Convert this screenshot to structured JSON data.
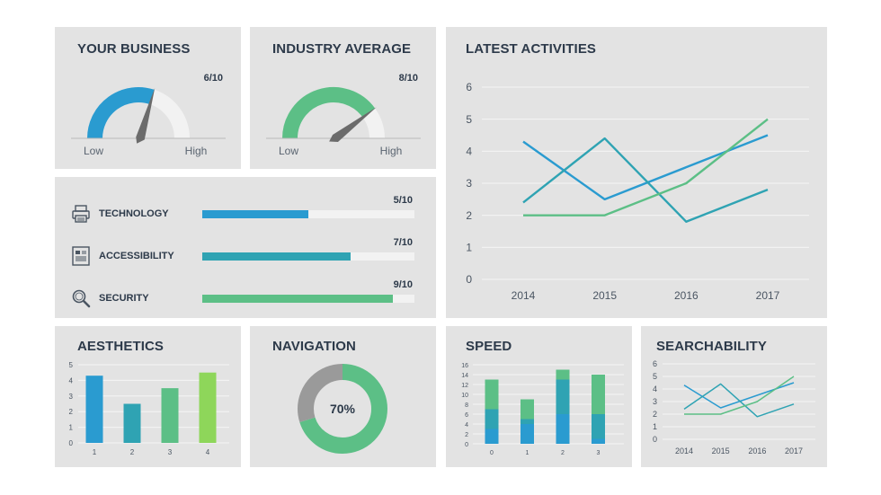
{
  "colors": {
    "panel": "#e3e3e3",
    "blue": "#2a9bd0",
    "teal": "#2fa3b3",
    "green": "#5cbf86",
    "lime": "#8ed65a",
    "gauge_track": "#f2f2f2",
    "needle": "#6b6b6b",
    "donut_grey": "#9a9a9a"
  },
  "business": {
    "title": "YOUR BUSINESS",
    "score": "6/10",
    "value": 6,
    "max": 10,
    "low_label": "Low",
    "high_label": "High",
    "accent": "#2a9bd0"
  },
  "industry": {
    "title": "INDUSTRY AVERAGE",
    "score": "8/10",
    "value": 8,
    "max": 10,
    "low_label": "Low",
    "high_label": "High",
    "accent": "#5cbf86"
  },
  "metrics": [
    {
      "label": "TECHNOLOGY",
      "score": "5/10",
      "value": 5,
      "icon": "printer-icon",
      "color": "#2a9bd0"
    },
    {
      "label": "ACCESSIBILITY",
      "score": "7/10",
      "value": 7,
      "icon": "document-icon",
      "color": "#2fa3b3"
    },
    {
      "label": "SECURITY",
      "score": "9/10",
      "value": 9,
      "icon": "magnifier-icon",
      "color": "#5cbf86"
    }
  ],
  "latest": {
    "title": "LATEST ACTIVITIES"
  },
  "aesthetics": {
    "title": "AESTHETICS"
  },
  "navigation": {
    "title": "NAVIGATION",
    "percent_label": "70%",
    "value": 70
  },
  "speed": {
    "title": "SPEED"
  },
  "searchability": {
    "title": "SEARCHABILITY"
  },
  "chart_data": [
    {
      "id": "latest",
      "type": "line",
      "x": [
        "2014",
        "2015",
        "2016",
        "2017"
      ],
      "ylim": [
        0,
        6
      ],
      "yticks": [
        0,
        1,
        2,
        3,
        4,
        5,
        6
      ],
      "grid": true,
      "series": [
        {
          "values": [
            4.3,
            2.5,
            3.5,
            4.5
          ],
          "color": "#2a9bd0"
        },
        {
          "values": [
            2.4,
            4.4,
            1.8,
            2.8
          ],
          "color": "#2fa3b3"
        },
        {
          "values": [
            2.0,
            2.0,
            3.0,
            5.0
          ],
          "color": "#5cbf86"
        }
      ]
    },
    {
      "id": "aesthetics",
      "type": "bar",
      "categories": [
        "1",
        "2",
        "3",
        "4"
      ],
      "values": [
        4.3,
        2.5,
        3.5,
        4.5
      ],
      "colors": [
        "#2a9bd0",
        "#2fa3b3",
        "#5cbf86",
        "#8ed65a"
      ],
      "ylim": [
        0,
        5
      ],
      "yticks": [
        0,
        1,
        2,
        3,
        4,
        5
      ],
      "grid": true
    },
    {
      "id": "navigation",
      "type": "pie",
      "slices": [
        {
          "value": 70,
          "color": "#5cbf86"
        },
        {
          "value": 30,
          "color": "#9a9a9a"
        }
      ]
    },
    {
      "id": "speed",
      "type": "bar",
      "stacked": true,
      "categories": [
        "0",
        "1",
        "2",
        "3"
      ],
      "ylim": [
        0,
        16
      ],
      "yticks": [
        0,
        2,
        4,
        6,
        8,
        10,
        12,
        14,
        16
      ],
      "grid": true,
      "series": [
        {
          "values": [
            3,
            4,
            6,
            1
          ],
          "color": "#2a9bd0"
        },
        {
          "values": [
            4,
            1,
            7,
            5
          ],
          "color": "#2fa3b3"
        },
        {
          "values": [
            6,
            4,
            2,
            8
          ],
          "color": "#5cbf86"
        }
      ]
    },
    {
      "id": "searchability",
      "type": "line",
      "x": [
        "2014",
        "2015",
        "2016",
        "2017"
      ],
      "ylim": [
        0,
        6
      ],
      "yticks": [
        0,
        1,
        2,
        3,
        4,
        5,
        6
      ],
      "grid": true,
      "series": [
        {
          "values": [
            4.3,
            2.5,
            3.5,
            4.5
          ],
          "color": "#2a9bd0"
        },
        {
          "values": [
            2.4,
            4.4,
            1.8,
            2.8
          ],
          "color": "#2fa3b3"
        },
        {
          "values": [
            2.0,
            2.0,
            3.0,
            5.0
          ],
          "color": "#5cbf86"
        }
      ]
    }
  ]
}
